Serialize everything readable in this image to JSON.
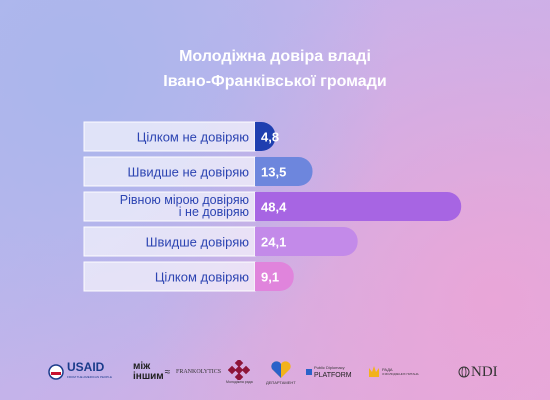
{
  "title_line1": "Молодіжна довіра владі",
  "title_line2": "Івано-Франківської громади",
  "chart_data": {
    "type": "bar",
    "orientation": "horizontal",
    "categories": [
      [
        "Цілком не довіряю"
      ],
      [
        "Швидше не довіряю"
      ],
      [
        "Рівною мірою довіряю",
        "і не довіряю"
      ],
      [
        "Швидше довіряю"
      ],
      [
        "Цілком довіряю"
      ]
    ],
    "values": [
      4.8,
      13.5,
      48.4,
      24.1,
      9.1
    ],
    "value_labels": [
      "4,8",
      "13,5",
      "48,4",
      "24,1",
      "9,1"
    ],
    "bar_colors": [
      "#1f3fb0",
      "#6d86dd",
      "#a765e3",
      "#c38ae9",
      "#e084dc"
    ],
    "xlim": [
      0,
      50
    ]
  },
  "logos": {
    "usaid": "USAID",
    "usaid_sub": "FROM THE AMERICAN PEOPLE",
    "mizh_1": "між",
    "mizh_2": "іншим",
    "frankolytics": "FRANKOLYTICS",
    "molodizhna": "Молодіжна рада",
    "departament": "ДЕПАРТАМЕНТ",
    "pdp_1": "Public Diplomacy",
    "pdp_2": "PLATFORM",
    "rada_1": "РАДА",
    "rada_2": "З МОЛОДІЖНИХ ПИТАНЬ",
    "ndi": "NDI"
  }
}
